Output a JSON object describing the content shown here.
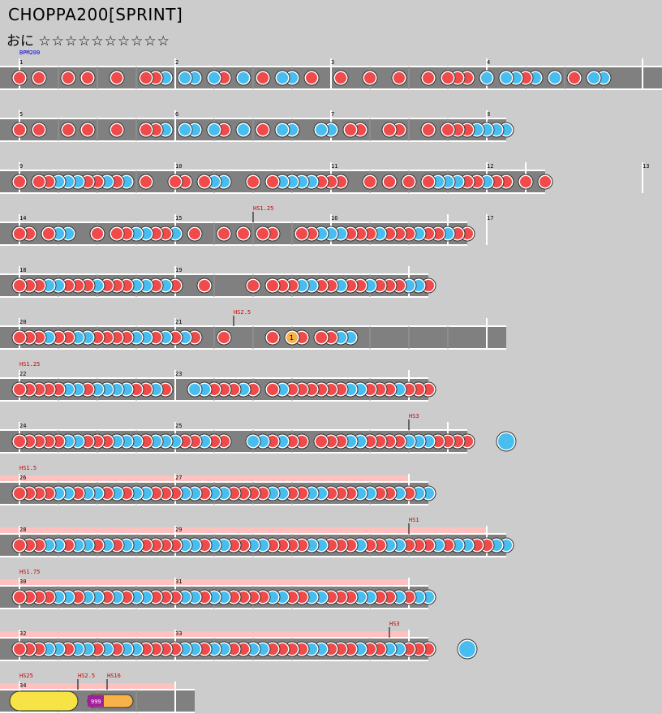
{
  "song_title": "CHOPPA200[SPRINT]",
  "difficulty_label": "おに",
  "level_stars": "☆☆☆☆☆☆☆☆☆☆",
  "colors": {
    "background": "#cccccc",
    "lane": "#808080",
    "don": "#f04a4a",
    "ka": "#48bdf0",
    "roll": "#f7e346",
    "balloon": "#f7b24a",
    "highlight": "#ffc0c0",
    "label_red": "#cc0000",
    "label_blue": "#0000cc"
  },
  "rows": [
    {
      "ticks": 64,
      "measures": [
        "1",
        "2",
        "3",
        "4"
      ],
      "labels": [
        {
          "t": "BPM200",
          "tick": 0,
          "color": "blue"
        }
      ],
      "highlight": false,
      "notes": "d.d..d.d..d..ddk.kk.kd.k.d.kk.d..d..d..d..d.ddd.k.kkdk.k.d.kk.."
    },
    {
      "ticks": 48,
      "measures": [
        "5",
        "6",
        "7",
        "8"
      ],
      "labels": [],
      "highlight": false,
      "notes": "d.d..d.d..d..ddk.kk.kd.k.d.kk..kk.dd..dd..d.dddkkkkd.dkd.."
    },
    {
      "ticks": 52,
      "measures": [
        "9",
        "10",
        "11",
        "12",
        "13"
      ],
      "labels": [],
      "highlight": false,
      "notes": "d.ddkkkddkdk.d..dd.dkk..d.dkkkkddd..d.d.d.dkkkddkdd.d.dkkkdk.d"
    },
    {
      "ticks": 44,
      "measures": [
        "14",
        "15",
        "16",
        "17"
      ],
      "labels": [
        {
          "t": "HS1.25",
          "tick": 24,
          "color": "red"
        }
      ],
      "highlight": false,
      "notes": "dd.dkk..d.ddkkddk.d..d.d.dd..ddkkkdddkdddkddkdd.d...d.dd."
    },
    {
      "ticks": 40,
      "measures": [
        "18",
        "19"
      ],
      "labels": [],
      "highlight": false,
      "notes": "dddkkdddkdddkkdkd..d....d.dddkkddkddkdddkkdkk.d.....d.dd"
    },
    {
      "ticks": 48,
      "measures": [
        "20",
        "21"
      ],
      "labels": [
        {
          "t": "HS2.5",
          "tick": 22,
          "color": "red"
        }
      ],
      "highlight": false,
      "notes": "dddkddkkddddkkdkdkd..d....d..d.ddkk"
    },
    {
      "ticks": 40,
      "measures": [
        "22",
        "23"
      ],
      "labels": [
        {
          "t": "HS1.25",
          "tick": 0,
          "color": "red"
        }
      ],
      "highlight": false,
      "notes": "dddddkkdkkkkddkd..kkdddkd.dkddddddkkdddkdddddk.kkd.dd."
    },
    {
      "ticks": 44,
      "measures": [
        "24",
        "25"
      ],
      "labels": [
        {
          "t": "HS3",
          "tick": 40,
          "color": "red"
        }
      ],
      "highlight": false,
      "notes": "dddddkkdddkkkdkkkddkdd..kkdkdd.dddkkddddkkkddddkdkkdd.kkk.d.dd.."
    },
    {
      "ticks": 40,
      "measures": [
        "26",
        "27"
      ],
      "labels": [
        {
          "t": "HS1.5",
          "tick": 0,
          "color": "red"
        }
      ],
      "highlight": true,
      "notes": "ddddkkdkkdkdkkdddkkdkkddddkkddkkdddkkddkdkkdkdkdddkkdd.d."
    },
    {
      "ticks": 48,
      "measures": [
        "28",
        "29"
      ],
      "labels": [
        {
          "t": "HS1",
          "tick": 40,
          "color": "red"
        }
      ],
      "highlight": true,
      "notes": "dddkkdkkdkdkkddddkkdkkddkkddddkkdddkddkkdddkdkkddkkd.d.dd"
    },
    {
      "ticks": 40,
      "measures": [
        "30",
        "31"
      ],
      "labels": [
        {
          "t": "HS1.75",
          "tick": 0,
          "color": "red"
        }
      ],
      "highlight": true,
      "notes": "ddddkkdkkdkdkkdddkkdkkddddkkddkkdddkkddkdkkdkdkdddkkddkd."
    },
    {
      "ticks": 40,
      "measures": [
        "32",
        "33"
      ],
      "labels": [
        {
          "t": "HS3",
          "tick": 38,
          "color": "red"
        }
      ],
      "highlight": true,
      "notes": "dddkkdkkdkdkkddddkkdkkddkkddddkkdddkddkkdddkdkkddkkdkkdkk"
    },
    {
      "ticks": 16,
      "measures": [
        "34"
      ],
      "labels": [
        {
          "t": "HS25",
          "tick": 0,
          "color": "red"
        },
        {
          "t": "HS2.5",
          "tick": 6,
          "color": "red"
        },
        {
          "t": "HS16",
          "tick": 9,
          "color": "red"
        }
      ],
      "highlight": true,
      "notes": ""
    }
  ],
  "specials": {
    "balloon_count": "1",
    "balloon_roll_count": "999"
  }
}
